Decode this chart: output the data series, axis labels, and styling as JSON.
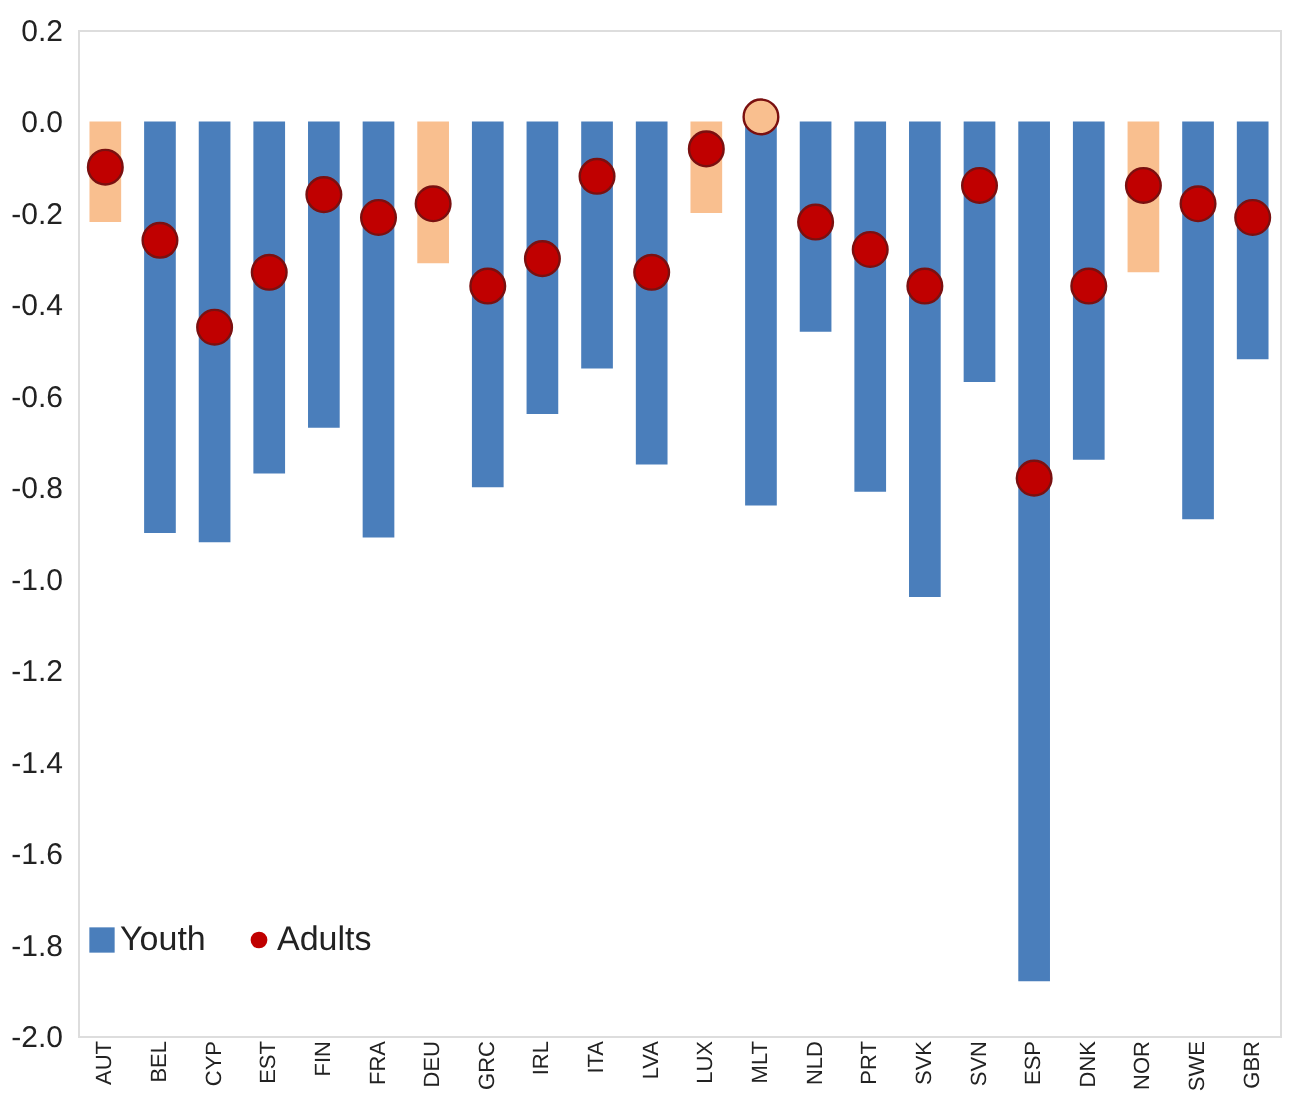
{
  "chart_data": {
    "type": "bar",
    "categories": [
      "AUT",
      "BEL",
      "CYP",
      "EST",
      "FIN",
      "FRA",
      "DEU",
      "GRC",
      "IRL",
      "ITA",
      "LVA",
      "LUX",
      "MLT",
      "NLD",
      "PRT",
      "SVK",
      "SVN",
      "ESP",
      "DNK",
      "NOR",
      "SWE",
      "GBR"
    ],
    "series": [
      {
        "name": "Youth",
        "color": "#4a7ebb",
        "colors": [
          "#f9bf8f",
          "#4a7ebb",
          "#4a7ebb",
          "#4a7ebb",
          "#4a7ebb",
          "#4a7ebb",
          "#f9bf8f",
          "#4a7ebb",
          "#4a7ebb",
          "#4a7ebb",
          "#4a7ebb",
          "#f9bf8f",
          "#4a7ebb",
          "#4a7ebb",
          "#4a7ebb",
          "#4a7ebb",
          "#4a7ebb",
          "#4a7ebb",
          "#4a7ebb",
          "#f9bf8f",
          "#4a7ebb",
          "#4a7ebb"
        ],
        "values": [
          -0.22,
          -0.9,
          -0.92,
          -0.77,
          -0.67,
          -0.91,
          -0.31,
          -0.8,
          -0.64,
          -0.54,
          -0.75,
          -0.2,
          -0.84,
          -0.46,
          -0.81,
          -1.04,
          -0.57,
          -1.88,
          -0.74,
          -0.33,
          -0.87,
          -0.52
        ]
      },
      {
        "name": "Adults",
        "type": "scatter",
        "color": "#c00000",
        "colors": [
          "#c00000",
          "#c00000",
          "#c00000",
          "#c00000",
          "#c00000",
          "#c00000",
          "#c00000",
          "#c00000",
          "#c00000",
          "#c00000",
          "#c00000",
          "#c00000",
          "#f9bf8f",
          "#c00000",
          "#c00000",
          "#c00000",
          "#c00000",
          "#c00000",
          "#c00000",
          "#c00000",
          "#c00000",
          "#c00000"
        ],
        "values": [
          -0.1,
          -0.26,
          -0.45,
          -0.33,
          -0.16,
          -0.21,
          -0.18,
          -0.36,
          -0.3,
          -0.12,
          -0.33,
          -0.06,
          0.01,
          -0.22,
          -0.28,
          -0.36,
          -0.14,
          -0.78,
          -0.36,
          -0.14,
          -0.18,
          -0.21
        ]
      }
    ],
    "ylim": [
      -2.0,
      0.2
    ],
    "yticks": [
      0.2,
      {
        "value": 0,
        "label": "0.0"
      },
      -0.2,
      -0.4,
      -0.6,
      -0.8,
      {
        "value": -1,
        "label": "-1.0"
      },
      -1.2,
      -1.4,
      -1.6,
      -1.8,
      {
        "value": -2,
        "label": "-2.0"
      }
    ],
    "grid": false,
    "legend": "bottom left",
    "marker": "circle"
  }
}
